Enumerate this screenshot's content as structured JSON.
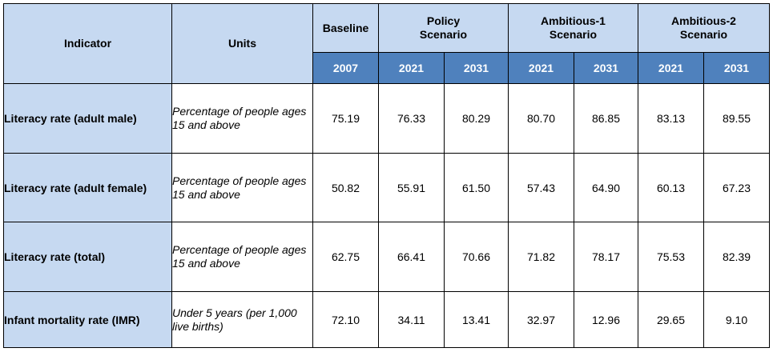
{
  "table": {
    "headers": {
      "indicator": "Indicator",
      "units": "Units",
      "baseline": "Baseline",
      "policy": "Policy Scenario",
      "ambitious1": "Ambitious-1 Scenario",
      "ambitious2": "Ambitious-2 Scenario"
    },
    "years": [
      "2007",
      "2021",
      "2031",
      "2021",
      "2031",
      "2021",
      "2031"
    ],
    "rows": [
      {
        "indicator": "Literacy rate (adult male)",
        "units": "Percentage of people ages 15 and above",
        "values": [
          "75.19",
          "76.33",
          "80.29",
          "80.70",
          "86.85",
          "83.13",
          "89.55"
        ]
      },
      {
        "indicator": "Literacy rate (adult female)",
        "units": "Percentage of people ages 15 and above",
        "values": [
          "50.82",
          "55.91",
          "61.50",
          "57.43",
          "64.90",
          "60.13",
          "67.23"
        ]
      },
      {
        "indicator": "Literacy rate (total)",
        "units": "Percentage of people ages 15 and above",
        "values": [
          "62.75",
          "66.41",
          "70.66",
          "71.82",
          "78.17",
          "75.53",
          "82.39"
        ]
      },
      {
        "indicator": "Infant mortality rate (IMR)",
        "units": "Under 5 years (per 1,000 live births)",
        "values": [
          "72.10",
          "34.11",
          "13.41",
          "32.97",
          "12.96",
          "29.65",
          "9.10"
        ]
      }
    ]
  },
  "colors": {
    "header_fill": "#c6d9f1",
    "year_fill": "#4f81bd",
    "year_text": "#ffffff",
    "border": "#000000"
  }
}
